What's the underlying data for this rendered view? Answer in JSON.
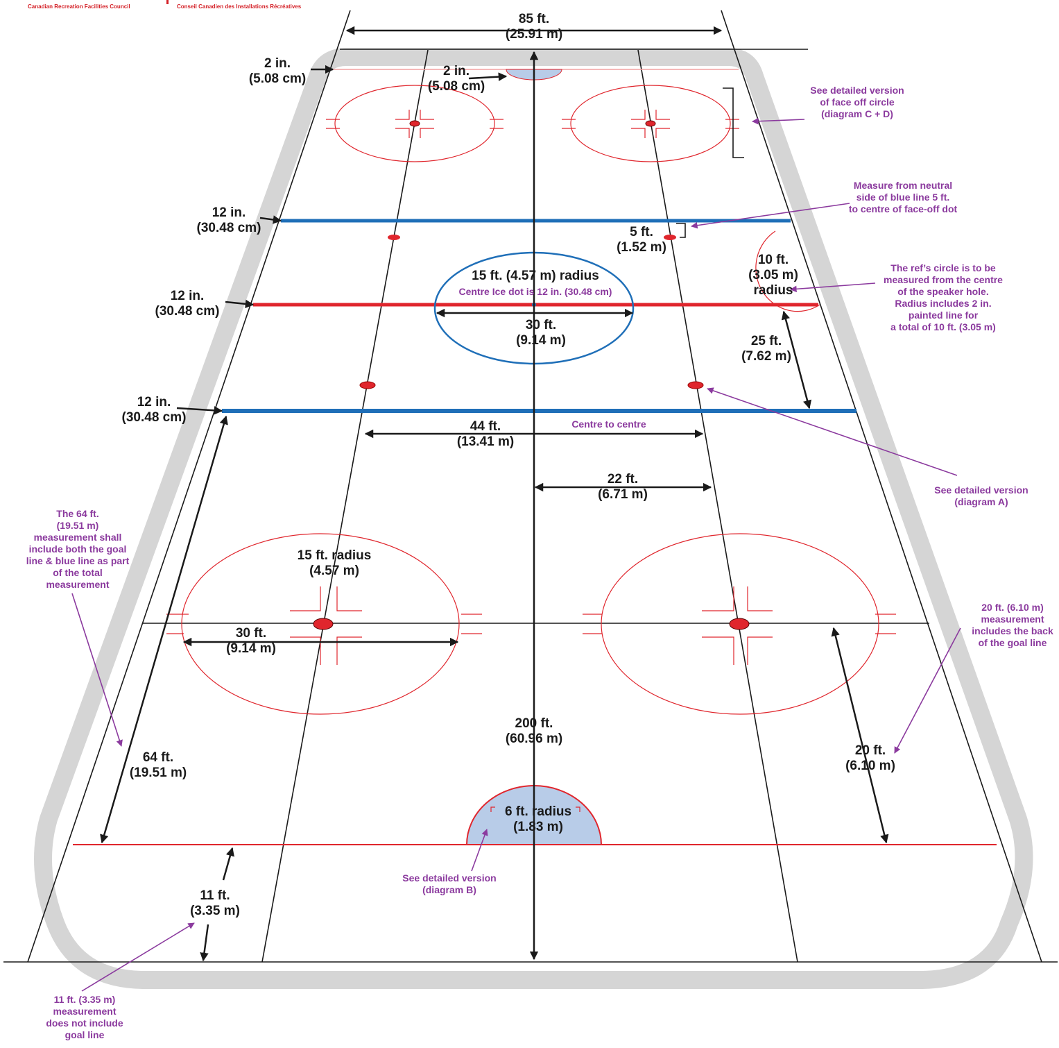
{
  "header": {
    "org_en": "Canadian Recreation Facilities Council",
    "org_fr": "Conseil Canadien des Installations Récréatives"
  },
  "dimensions": {
    "width": [
      "85 ft.",
      "(25.91 m)"
    ],
    "line_left": [
      "2 in.",
      "(5.08 cm)"
    ],
    "crease_line": [
      "2 in.",
      "(5.08 cm)"
    ],
    "blue_line_top": [
      "12 in.",
      "(30.48 cm)"
    ],
    "red_line": [
      "12 in.",
      "(30.48 cm)"
    ],
    "blue_line_bottom": [
      "12 in.",
      "(30.48 cm)"
    ],
    "dot_offset": [
      "5 ft.",
      "(1.52 m)"
    ],
    "ref_circle": [
      "10 ft.",
      "(3.05 m)",
      "radius"
    ],
    "centre_circle_radius": [
      "15 ft.  (4.57 m) radius"
    ],
    "centre_circle_diameter": [
      "30 ft.",
      "(9.14 m)"
    ],
    "blue_to_red": [
      "25 ft.",
      "(7.62 m)"
    ],
    "dot_spacing": [
      "44 ft.",
      "(13.41 m)"
    ],
    "dot_half": [
      "22 ft.",
      "(6.71 m)"
    ],
    "end_circle_radius": [
      "15 ft.  radius",
      "(4.57 m)"
    ],
    "end_circle_diameter": [
      "30 ft.",
      "(9.14 m)"
    ],
    "length": [
      "200 ft.",
      "(60.96 m)"
    ],
    "goal_to_blue": [
      "64 ft.",
      "(19.51 m)"
    ],
    "end_dot_to_goal": [
      "20 ft.",
      "(6.10 m)"
    ],
    "crease_radius": [
      "6 ft. radius",
      "(1.83 m)"
    ],
    "goal_to_end": [
      "11 ft.",
      "(3.35 m)"
    ]
  },
  "notes": {
    "centre_dot": [
      "Centre Ice dot is 12 in. (30.48 cm)"
    ],
    "centre_to_centre": [
      "Centre to centre"
    ],
    "faceoff_circle": [
      "See detailed version",
      "of face off circle",
      "(diagram C + D)"
    ],
    "neutral_side": [
      "Measure from neutral",
      "side of blue line 5 ft.",
      "to centre of face-off dot"
    ],
    "ref_circle": [
      "The ref’s circle is to be",
      "measured from the centre",
      "of the speaker hole.",
      "Radius includes 2 in.",
      "painted line for",
      "a total of 10 ft. (3.05 m)"
    ],
    "diagram_a": [
      "See detailed version",
      "(diagram A)"
    ],
    "goal_to_blue": [
      "The 64 ft.",
      "(19.51 m)",
      "measurement shall",
      "include both the goal",
      "line & blue line as part",
      "of the total",
      "measurement"
    ],
    "end_dot_to_goal": [
      "20 ft. (6.10 m)",
      "measurement",
      "includes the back",
      "of the goal line"
    ],
    "diagram_b": [
      "See detailed version",
      "(diagram B)"
    ],
    "goal_to_end": [
      "11 ft. (3.35 m)",
      "measurement",
      "does not include",
      "goal line"
    ]
  }
}
